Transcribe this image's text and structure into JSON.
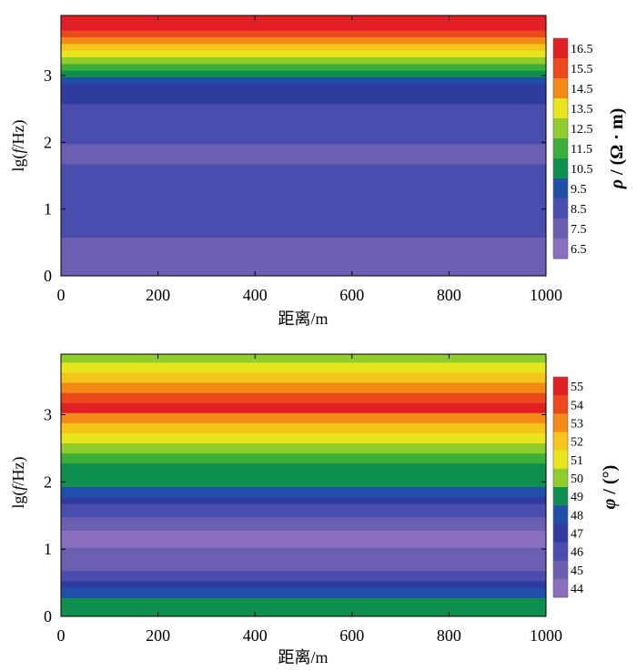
{
  "chart_data": [
    {
      "type": "heatmap",
      "xlabel": "距离/m",
      "ylabel_prefix": "lg(",
      "ylabel_var": "f",
      "ylabel_suffix": "/Hz)",
      "xlim": [
        0,
        1000
      ],
      "ylim": [
        0,
        3.9
      ],
      "xticks": [
        "0",
        "200",
        "400",
        "600",
        "800",
        "1000"
      ],
      "yticks": [
        "0",
        "1",
        "2",
        "3"
      ],
      "colorbar_label_var": "ρ",
      "colorbar_label_unit": " / (Ω · m)",
      "colorbar_ticks": [
        "16.5",
        "15.5",
        "14.5",
        "13.5",
        "12.5",
        "11.5",
        "10.5",
        "9.5",
        "8.5",
        "7.5",
        "6.5"
      ],
      "colorbar_range": [
        6.5,
        16.5
      ],
      "profile_lgf": [
        0.0,
        0.3,
        0.6,
        1.0,
        1.4,
        1.7,
        2.0,
        2.3,
        2.6,
        2.8,
        2.9,
        3.0,
        3.1,
        3.2,
        3.3,
        3.4,
        3.5,
        3.6,
        3.7,
        3.8,
        3.9
      ],
      "profile_values": [
        7.0,
        7.3,
        7.6,
        7.9,
        8.1,
        7.8,
        7.6,
        7.9,
        8.4,
        8.8,
        9.6,
        10.4,
        11.2,
        12.0,
        12.8,
        13.6,
        14.4,
        15.2,
        15.8,
        16.4,
        16.6
      ]
    },
    {
      "type": "heatmap",
      "xlabel": "距离/m",
      "ylabel_prefix": "lg(",
      "ylabel_var": "f",
      "ylabel_suffix": "/Hz)",
      "xlim": [
        0,
        1000
      ],
      "ylim": [
        0,
        3.9
      ],
      "xticks": [
        "0",
        "200",
        "400",
        "600",
        "800",
        "1000"
      ],
      "yticks": [
        "0",
        "1",
        "2",
        "3"
      ],
      "colorbar_label_var": "φ",
      "colorbar_label_unit": " / (°)",
      "colorbar_ticks": [
        "55",
        "54",
        "53",
        "52",
        "51",
        "50",
        "49",
        "48",
        "47",
        "46",
        "45",
        "44"
      ],
      "colorbar_range": [
        44,
        55
      ],
      "profile_lgf": [
        0.0,
        0.15,
        0.3,
        0.45,
        0.55,
        0.7,
        0.9,
        1.05,
        1.15,
        1.3,
        1.5,
        1.7,
        1.8,
        1.95,
        2.1,
        2.3,
        2.45,
        2.6,
        2.75,
        2.9,
        3.05,
        3.2,
        3.35,
        3.5,
        3.65,
        3.8,
        3.9
      ],
      "profile_values": [
        49.2,
        48.6,
        47.8,
        46.8,
        46.0,
        45.3,
        44.8,
        44.4,
        44.2,
        44.6,
        45.4,
        46.3,
        47.0,
        48.0,
        48.6,
        49.2,
        50.0,
        51.0,
        52.0,
        53.0,
        54.2,
        54.9,
        54.0,
        52.9,
        51.7,
        50.5,
        49.6
      ]
    }
  ]
}
